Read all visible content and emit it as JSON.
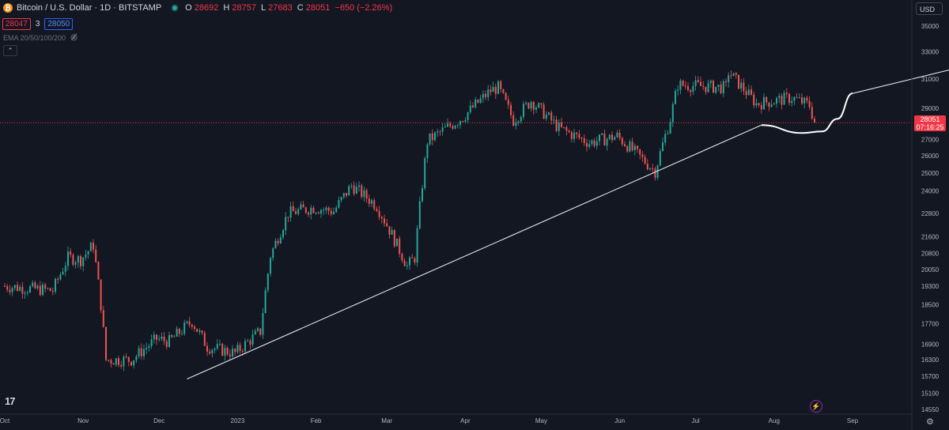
{
  "header": {
    "symbol_icon": "bitcoin-icon",
    "title": "Bitcoin / U.S. Dollar · 1D · BITSTAMP",
    "ohlc": {
      "o_label": "O",
      "o_value": "28692",
      "h_label": "H",
      "h_value": "28757",
      "l_label": "L",
      "l_value": "27683",
      "c_label": "C",
      "c_value": "28051",
      "change": "−650 (−2.26%)"
    },
    "bid": "28047",
    "spread": "3",
    "ask": "28050",
    "indicator": "EMA 20/50/100/200",
    "collapse_glyph": "⌃"
  },
  "currency": "USD",
  "last_price": {
    "value": "28051",
    "countdown": "07:16:25",
    "color": "#f23645"
  },
  "colors": {
    "up": "#26a69a",
    "down": "#ef5350",
    "background": "#131722",
    "grid": "#1e222d",
    "axis_text": "#b2b5be"
  },
  "chart_data": {
    "type": "candlestick",
    "symbol": "BTCUSD",
    "timeframe": "1D",
    "y_scale": "log",
    "ylim": [
      14300,
      37000
    ],
    "y_ticks": [
      35000,
      33000,
      31000,
      29000,
      27000,
      26000,
      25000,
      24000,
      22800,
      21600,
      20800,
      20050,
      19300,
      18500,
      17700,
      16900,
      16300,
      15700,
      15100,
      14550
    ],
    "x_ticks": [
      "Oct",
      "Nov",
      "Dec",
      "2023",
      "Feb",
      "Mar",
      "Apr",
      "May",
      "Jun",
      "Jul",
      "Aug",
      "Sep"
    ],
    "price_path": [
      [
        "2022-10-01",
        19300
      ],
      [
        "2022-10-10",
        19200
      ],
      [
        "2022-10-20",
        19100
      ],
      [
        "2022-10-26",
        20600
      ],
      [
        "2022-10-31",
        20500
      ],
      [
        "2022-11-05",
        21200
      ],
      [
        "2022-11-08",
        18500
      ],
      [
        "2022-11-10",
        16300
      ],
      [
        "2022-11-20",
        16300
      ],
      [
        "2022-11-30",
        17100
      ],
      [
        "2022-12-05",
        17000
      ],
      [
        "2022-12-14",
        17800
      ],
      [
        "2022-12-20",
        16800
      ],
      [
        "2022-12-31",
        16550
      ],
      [
        "2023-01-10",
        17400
      ],
      [
        "2023-01-14",
        20700
      ],
      [
        "2023-01-21",
        22800
      ],
      [
        "2023-01-31",
        23100
      ],
      [
        "2023-02-08",
        22900
      ],
      [
        "2023-02-15",
        24300
      ],
      [
        "2023-02-25",
        23200
      ],
      [
        "2023-03-09",
        20200
      ],
      [
        "2023-03-12",
        20600
      ],
      [
        "2023-03-17",
        26900
      ],
      [
        "2023-03-31",
        28400
      ],
      [
        "2023-04-11",
        30200
      ],
      [
        "2023-04-14",
        30400
      ],
      [
        "2023-04-20",
        28200
      ],
      [
        "2023-04-27",
        29500
      ],
      [
        "2023-05-08",
        27700
      ],
      [
        "2023-05-20",
        26800
      ],
      [
        "2023-05-31",
        27200
      ],
      [
        "2023-06-10",
        25800
      ],
      [
        "2023-06-15",
        25100
      ],
      [
        "2023-06-21",
        28300
      ],
      [
        "2023-06-24",
        30600
      ],
      [
        "2023-07-13",
        30400
      ],
      [
        "2023-07-14",
        31500
      ],
      [
        "2023-07-25",
        29300
      ],
      [
        "2023-08-08",
        29700
      ],
      [
        "2023-08-15",
        29200
      ],
      [
        "2023-08-17",
        28051
      ]
    ],
    "trendline": {
      "from": [
        "2022-12-12",
        15600
      ],
      "to": [
        "2023-07-27",
        27900
      ]
    },
    "projection": {
      "dip": [
        [
          "2023-07-27",
          27900
        ],
        [
          "2023-08-12",
          27400
        ],
        [
          "2023-08-20",
          27500
        ],
        [
          "2023-08-26",
          28300
        ],
        [
          "2023-09-01",
          30000
        ]
      ],
      "line": {
        "from": [
          "2023-09-01",
          30000
        ],
        "to": [
          "2023-10-17",
          32000
        ]
      }
    }
  }
}
